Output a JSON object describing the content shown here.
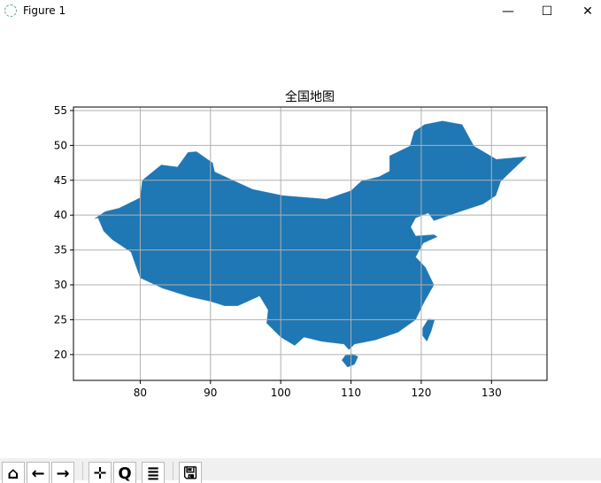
{
  "window": {
    "title": "Figure 1",
    "minimize_icon": "minimize-icon",
    "maximize_icon": "maximize-icon",
    "close_icon": "close-icon"
  },
  "toolbar": {
    "buttons": [
      {
        "name": "home",
        "glyph": "⌂"
      },
      {
        "name": "back",
        "glyph": "←"
      },
      {
        "name": "forward",
        "glyph": "→"
      },
      {
        "name": "pan",
        "glyph": "✛"
      },
      {
        "name": "zoom",
        "glyph": "Q"
      },
      {
        "name": "configure-subplots",
        "glyph": "≣"
      },
      {
        "name": "save",
        "glyph": "🖫"
      }
    ]
  },
  "chart_data": {
    "type": "map",
    "title": "全国地图",
    "xlim": [
      70.5,
      137.9
    ],
    "ylim": [
      16.3,
      55.5
    ],
    "xticks": [
      80,
      90,
      100,
      110,
      120,
      130
    ],
    "yticks": [
      20,
      25,
      30,
      35,
      40,
      45,
      50,
      55
    ],
    "grid": true,
    "fill_color": "#1f77b4",
    "grid_color": "#b0b0b0",
    "regions": [
      {
        "name": "mainland",
        "lonlat": [
          [
            73.5,
            39.5
          ],
          [
            75,
            40.5
          ],
          [
            77,
            41
          ],
          [
            80,
            42.5
          ],
          [
            80.3,
            45
          ],
          [
            83,
            47.2
          ],
          [
            85.3,
            46.9
          ],
          [
            86.8,
            49
          ],
          [
            88,
            49.1
          ],
          [
            90.3,
            47.5
          ],
          [
            90.6,
            46.2
          ],
          [
            93.4,
            44.9
          ],
          [
            96,
            43.7
          ],
          [
            100.3,
            42.8
          ],
          [
            104,
            42.5
          ],
          [
            106.5,
            42.3
          ],
          [
            110,
            43.5
          ],
          [
            111.5,
            44.9
          ],
          [
            114,
            45.5
          ],
          [
            115.5,
            46.3
          ],
          [
            115.5,
            48.5
          ],
          [
            118.4,
            49.9
          ],
          [
            119,
            52
          ],
          [
            120.5,
            53
          ],
          [
            123,
            53.5
          ],
          [
            125.8,
            53
          ],
          [
            127.5,
            49.9
          ],
          [
            130.7,
            48
          ],
          [
            134,
            48.3
          ],
          [
            135,
            48.4
          ],
          [
            132.5,
            46
          ],
          [
            131.3,
            44.8
          ],
          [
            130.6,
            42.8
          ],
          [
            128.8,
            41.6
          ],
          [
            125.5,
            40.5
          ],
          [
            121.8,
            39.2
          ],
          [
            121,
            40.3
          ],
          [
            119.2,
            39.6
          ],
          [
            118.5,
            38.3
          ],
          [
            119.2,
            37
          ],
          [
            121.8,
            37.2
          ],
          [
            122.3,
            36.9
          ],
          [
            120.3,
            36
          ],
          [
            119.2,
            34
          ],
          [
            120.6,
            32.5
          ],
          [
            121.8,
            30
          ],
          [
            120.4,
            27.5
          ],
          [
            119.2,
            25
          ],
          [
            116.7,
            23.2
          ],
          [
            113.5,
            22.1
          ],
          [
            110.5,
            21.5
          ],
          [
            109.7,
            20.7
          ],
          [
            109,
            21.5
          ],
          [
            105.8,
            21.9
          ],
          [
            103.3,
            22.5
          ],
          [
            102,
            21.3
          ],
          [
            100,
            22.5
          ],
          [
            98,
            24.5
          ],
          [
            98.2,
            26.4
          ],
          [
            97,
            28.4
          ],
          [
            93.9,
            27
          ],
          [
            92,
            27
          ],
          [
            90.1,
            27.6
          ],
          [
            87,
            28.3
          ],
          [
            83.2,
            29.5
          ],
          [
            80,
            31
          ],
          [
            79.4,
            32.7
          ],
          [
            78.7,
            34.7
          ],
          [
            76,
            36.5
          ],
          [
            74.8,
            37.7
          ],
          [
            74,
            39.6
          ]
        ]
      },
      {
        "name": "hainan",
        "lonlat": [
          [
            108.7,
            19.2
          ],
          [
            109.5,
            18.2
          ],
          [
            110.5,
            18.6
          ],
          [
            111,
            19.7
          ],
          [
            110.2,
            20.1
          ],
          [
            109.2,
            19.9
          ]
        ]
      },
      {
        "name": "taiwan",
        "lonlat": [
          [
            120.2,
            23.8
          ],
          [
            121,
            25.1
          ],
          [
            121.9,
            25
          ],
          [
            121.4,
            23.3
          ],
          [
            120.8,
            21.9
          ],
          [
            120.2,
            22.7
          ]
        ]
      }
    ]
  }
}
